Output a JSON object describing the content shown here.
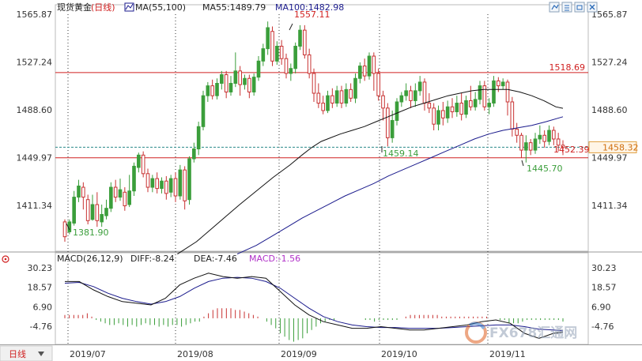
{
  "header": {
    "instrument": "现货黄金",
    "period": "(日线)",
    "ma_label": "MA(55,100)",
    "ma55_label": "MA55:1489.79",
    "ma100_label": "MA100:1482.98"
  },
  "macd_header": {
    "params": "MACD(26,12,9)",
    "diff_label": "DIFF:-8.24",
    "dea_label": "DEA:-7.46",
    "macd_label": "MACD:-1.56"
  },
  "bottom_tab": "日线",
  "watermark": "FX678汇通网",
  "toolbar_icons": [
    "chart-settings-icon",
    "layout-toggle-icon",
    "window-restore-icon",
    "window-close-icon"
  ],
  "colors": {
    "up": "#3b9e3b",
    "down": "#c83232",
    "hline": "#d02020",
    "current_dashed": "#2a8a8a",
    "ma55": "#111111",
    "ma100": "#1a1a8c",
    "dea": "#1a1a8c",
    "diff": "#111111",
    "label_green": "#3b9e3b",
    "label_red": "#d02020",
    "axis_text": "#333333",
    "grid_vline": "#333333"
  },
  "chart_data": [
    {
      "type": "candlestick",
      "title": "",
      "ylim": [
        1372,
        1577
      ],
      "price_ticks": [
        1565.87,
        1527.24,
        1488.6,
        1449.97,
        1411.34
      ],
      "x_ticks": [
        "2019/07",
        "2019/08",
        "2019/09",
        "2019/10",
        "2019/11"
      ],
      "horizontal_lines": [
        {
          "value": 1518.69,
          "label": "1518.69"
        },
        {
          "value": 1449.8,
          "label": ""
        }
      ],
      "current_price": {
        "value": 1458.32,
        "label": "1458.32"
      },
      "annotations": [
        {
          "value": 1557.11,
          "label": "1557.11",
          "color": "red"
        },
        {
          "value": 1381.9,
          "label": "1381.90",
          "color": "green"
        },
        {
          "value": 1459.14,
          "label": "1459.14",
          "color": "green"
        },
        {
          "value": 1445.7,
          "label": "1445.70",
          "color": "green"
        },
        {
          "value": 1452.39,
          "label": "1452.39",
          "color": "red"
        }
      ],
      "candles": [
        [
          1398,
          1386,
          1400,
          1382
        ],
        [
          1390,
          1398,
          1400,
          1388
        ],
        [
          1397,
          1418,
          1423,
          1395
        ],
        [
          1418,
          1427,
          1432,
          1414
        ],
        [
          1426,
          1418,
          1430,
          1408
        ],
        [
          1416,
          1399,
          1420,
          1396
        ],
        [
          1400,
          1412,
          1420,
          1399
        ],
        [
          1412,
          1399,
          1422,
          1394
        ],
        [
          1398,
          1404,
          1412,
          1394
        ],
        [
          1403,
          1409,
          1416,
          1400
        ],
        [
          1409,
          1426,
          1430,
          1406
        ],
        [
          1426,
          1418,
          1432,
          1414
        ],
        [
          1418,
          1424,
          1433,
          1415
        ],
        [
          1422,
          1411,
          1426,
          1407
        ],
        [
          1412,
          1423,
          1436,
          1410
        ],
        [
          1423,
          1443,
          1446,
          1419
        ],
        [
          1442,
          1452,
          1454,
          1438
        ],
        [
          1452,
          1437,
          1455,
          1434
        ],
        [
          1437,
          1426,
          1441,
          1422
        ],
        [
          1426,
          1433,
          1436,
          1422
        ],
        [
          1433,
          1425,
          1438,
          1421
        ],
        [
          1425,
          1431,
          1434,
          1421
        ],
        [
          1431,
          1421,
          1435,
          1416
        ],
        [
          1422,
          1433,
          1436,
          1418
        ],
        [
          1433,
          1419,
          1438,
          1414
        ],
        [
          1419,
          1440,
          1444,
          1416
        ],
        [
          1440,
          1415,
          1443,
          1408
        ],
        [
          1416,
          1449,
          1451,
          1412
        ],
        [
          1449,
          1457,
          1462,
          1446
        ],
        [
          1457,
          1475,
          1479,
          1452
        ],
        [
          1475,
          1500,
          1504,
          1472
        ],
        [
          1500,
          1508,
          1511,
          1495
        ],
        [
          1508,
          1500,
          1513,
          1497
        ],
        [
          1500,
          1510,
          1514,
          1497
        ],
        [
          1510,
          1517,
          1520,
          1505
        ],
        [
          1517,
          1503,
          1520,
          1498
        ],
        [
          1503,
          1510,
          1516,
          1500
        ],
        [
          1510,
          1520,
          1535,
          1507
        ],
        [
          1520,
          1509,
          1524,
          1500
        ],
        [
          1509,
          1514,
          1517,
          1505
        ],
        [
          1514,
          1503,
          1517,
          1498
        ],
        [
          1503,
          1515,
          1518,
          1500
        ],
        [
          1515,
          1528,
          1532,
          1512
        ],
        [
          1528,
          1538,
          1542,
          1524
        ],
        [
          1538,
          1555,
          1560,
          1533
        ],
        [
          1552,
          1528,
          1556,
          1524
        ],
        [
          1528,
          1540,
          1544,
          1525
        ],
        [
          1540,
          1530,
          1545,
          1525
        ],
        [
          1530,
          1518,
          1534,
          1514
        ],
        [
          1518,
          1522,
          1526,
          1512
        ],
        [
          1522,
          1540,
          1543,
          1518
        ],
        [
          1540,
          1553,
          1557,
          1537
        ],
        [
          1553,
          1533,
          1557,
          1530
        ],
        [
          1533,
          1518,
          1538,
          1514
        ],
        [
          1518,
          1502,
          1522,
          1495
        ],
        [
          1502,
          1494,
          1510,
          1490
        ],
        [
          1494,
          1488,
          1500,
          1485
        ],
        [
          1488,
          1500,
          1504,
          1486
        ],
        [
          1500,
          1494,
          1506,
          1490
        ],
        [
          1494,
          1504,
          1508,
          1491
        ],
        [
          1504,
          1494,
          1508,
          1490
        ],
        [
          1494,
          1505,
          1510,
          1491
        ],
        [
          1505,
          1498,
          1510,
          1495
        ],
        [
          1498,
          1514,
          1518,
          1494
        ],
        [
          1514,
          1524,
          1527,
          1510
        ],
        [
          1524,
          1516,
          1530,
          1512
        ],
        [
          1516,
          1532,
          1535,
          1513
        ],
        [
          1532,
          1518,
          1535,
          1504
        ],
        [
          1518,
          1500,
          1522,
          1496
        ],
        [
          1500,
          1490,
          1504,
          1480
        ],
        [
          1490,
          1466,
          1494,
          1459
        ],
        [
          1466,
          1480,
          1488,
          1462
        ],
        [
          1480,
          1495,
          1498,
          1476
        ],
        [
          1495,
          1500,
          1503,
          1491
        ],
        [
          1500,
          1504,
          1510,
          1496
        ],
        [
          1504,
          1496,
          1508,
          1490
        ],
        [
          1496,
          1504,
          1510,
          1491
        ],
        [
          1504,
          1511,
          1516,
          1500
        ],
        [
          1511,
          1494,
          1514,
          1488
        ],
        [
          1494,
          1490,
          1502,
          1486
        ],
        [
          1490,
          1477,
          1494,
          1472
        ],
        [
          1477,
          1488,
          1492,
          1472
        ],
        [
          1488,
          1482,
          1495,
          1476
        ],
        [
          1482,
          1491,
          1496,
          1478
        ],
        [
          1491,
          1487,
          1498,
          1482
        ],
        [
          1487,
          1494,
          1500,
          1483
        ],
        [
          1494,
          1485,
          1502,
          1480
        ],
        [
          1485,
          1496,
          1500,
          1482
        ],
        [
          1496,
          1491,
          1508,
          1488
        ],
        [
          1491,
          1497,
          1503,
          1488
        ],
        [
          1497,
          1508,
          1512,
          1493
        ],
        [
          1508,
          1491,
          1512,
          1488
        ],
        [
          1491,
          1494,
          1498,
          1485
        ],
        [
          1494,
          1512,
          1516,
          1491
        ],
        [
          1512,
          1508,
          1515,
          1503
        ],
        [
          1508,
          1511,
          1514,
          1505
        ],
        [
          1511,
          1495,
          1513,
          1484
        ],
        [
          1495,
          1473,
          1499,
          1467
        ],
        [
          1473,
          1468,
          1478,
          1462
        ],
        [
          1468,
          1456,
          1470,
          1450
        ],
        [
          1456,
          1462,
          1468,
          1446
        ],
        [
          1462,
          1456,
          1465,
          1452
        ],
        [
          1456,
          1465,
          1470,
          1453
        ],
        [
          1465,
          1468,
          1476,
          1461
        ],
        [
          1468,
          1463,
          1472,
          1458
        ],
        [
          1463,
          1472,
          1476,
          1460
        ],
        [
          1472,
          1465,
          1475,
          1460
        ],
        [
          1465,
          1460,
          1470,
          1455
        ],
        [
          1460,
          1458,
          1464,
          1452
        ]
      ],
      "ma55": [
        [
          47,
          1372
        ],
        [
          55,
          1382
        ],
        [
          61,
          1392
        ],
        [
          67,
          1402
        ],
        [
          73,
          1412
        ],
        [
          80,
          1423
        ],
        [
          87,
          1434
        ],
        [
          94,
          1444
        ],
        [
          99,
          1452
        ],
        [
          103,
          1458
        ],
        [
          107,
          1463
        ],
        [
          111,
          1466
        ],
        [
          115,
          1469
        ],
        [
          120,
          1472
        ],
        [
          125,
          1475
        ],
        [
          130,
          1479
        ],
        [
          135,
          1483
        ],
        [
          140,
          1487
        ],
        [
          145,
          1491
        ],
        [
          150,
          1494
        ],
        [
          155,
          1497
        ],
        [
          160,
          1500
        ],
        [
          165,
          1502
        ],
        [
          170,
          1504
        ],
        [
          175,
          1505
        ],
        [
          180,
          1505
        ],
        [
          185,
          1505
        ],
        [
          190,
          1503
        ],
        [
          195,
          1500
        ],
        [
          200,
          1496
        ],
        [
          205,
          1491
        ],
        [
          208,
          1489.79
        ]
      ],
      "ma100": [
        [
          72,
          1372
        ],
        [
          80,
          1379
        ],
        [
          87,
          1387
        ],
        [
          93,
          1394
        ],
        [
          99,
          1401
        ],
        [
          105,
          1407
        ],
        [
          111,
          1413
        ],
        [
          117,
          1419
        ],
        [
          123,
          1424
        ],
        [
          129,
          1429
        ],
        [
          135,
          1435
        ],
        [
          141,
          1440
        ],
        [
          147,
          1445
        ],
        [
          153,
          1450
        ],
        [
          159,
          1455
        ],
        [
          165,
          1460
        ],
        [
          171,
          1465
        ],
        [
          177,
          1469
        ],
        [
          183,
          1472
        ],
        [
          189,
          1474
        ],
        [
          195,
          1476
        ],
        [
          201,
          1479
        ],
        [
          208,
          1482.98
        ]
      ]
    },
    {
      "type": "macd",
      "title": "",
      "ylim": [
        -16,
        34
      ],
      "macd_ticks": [
        30.23,
        18.57,
        6.9,
        -4.76
      ],
      "dea": [
        [
          0,
          21
        ],
        [
          6,
          21.5
        ],
        [
          12,
          19
        ],
        [
          18,
          15
        ],
        [
          24,
          12
        ],
        [
          30,
          10
        ],
        [
          36,
          8.5
        ],
        [
          42,
          10
        ],
        [
          48,
          13
        ],
        [
          54,
          18
        ],
        [
          60,
          22
        ],
        [
          66,
          24
        ],
        [
          72,
          24.5
        ],
        [
          78,
          24
        ],
        [
          84,
          22
        ],
        [
          90,
          18
        ],
        [
          96,
          12
        ],
        [
          102,
          6
        ],
        [
          108,
          1
        ],
        [
          114,
          -2
        ],
        [
          120,
          -4
        ],
        [
          126,
          -5
        ],
        [
          132,
          -5.5
        ],
        [
          138,
          -5.5
        ],
        [
          144,
          -6
        ],
        [
          150,
          -6
        ],
        [
          156,
          -6
        ],
        [
          162,
          -5.5
        ],
        [
          168,
          -5
        ],
        [
          174,
          -4.5
        ],
        [
          180,
          -4
        ],
        [
          186,
          -4
        ],
        [
          192,
          -5
        ],
        [
          198,
          -6.5
        ],
        [
          204,
          -7
        ],
        [
          208,
          -7.46
        ]
      ],
      "diff": [
        [
          0,
          22
        ],
        [
          6,
          22
        ],
        [
          12,
          17
        ],
        [
          18,
          13
        ],
        [
          24,
          10
        ],
        [
          30,
          9
        ],
        [
          36,
          8
        ],
        [
          42,
          12
        ],
        [
          48,
          20
        ],
        [
          54,
          24
        ],
        [
          60,
          27
        ],
        [
          66,
          25
        ],
        [
          72,
          24
        ],
        [
          78,
          25
        ],
        [
          84,
          24
        ],
        [
          90,
          16
        ],
        [
          96,
          8
        ],
        [
          102,
          2
        ],
        [
          108,
          -2
        ],
        [
          114,
          -4
        ],
        [
          120,
          -6
        ],
        [
          126,
          -6
        ],
        [
          132,
          -5
        ],
        [
          138,
          -6
        ],
        [
          144,
          -7
        ],
        [
          150,
          -7
        ],
        [
          156,
          -6
        ],
        [
          162,
          -5
        ],
        [
          168,
          -4
        ],
        [
          174,
          -2
        ],
        [
          180,
          -1
        ],
        [
          186,
          -3
        ],
        [
          192,
          -9
        ],
        [
          198,
          -12
        ],
        [
          204,
          -9
        ],
        [
          208,
          -8.24
        ]
      ],
      "hist": [
        2,
        2,
        2,
        2,
        2,
        3,
        1,
        -1,
        -2,
        -3,
        -4,
        -4,
        -3,
        -4,
        -5,
        -4,
        -5,
        -4,
        -3,
        -4,
        -4,
        -5,
        -4,
        -5,
        -4,
        -4,
        -5,
        -4,
        -3,
        -2,
        -2,
        1,
        3,
        5,
        6,
        6,
        6,
        6,
        5,
        5,
        4,
        3,
        2,
        1,
        0,
        -2,
        -4,
        -6,
        -9,
        -11,
        -13,
        -14,
        -13,
        -12,
        -9,
        -7,
        -5,
        -3,
        -2,
        -1,
        -1,
        0,
        0,
        0,
        0,
        0,
        0,
        -1,
        -1,
        -2,
        -1,
        -1,
        -1,
        -1,
        -1,
        0,
        1,
        2,
        2,
        2,
        2,
        2,
        2,
        2,
        1,
        1,
        1,
        1,
        1,
        1,
        1,
        1,
        1,
        1,
        1,
        0,
        0,
        -1,
        -1,
        -3,
        -3,
        -3,
        -2,
        -1,
        -1,
        -1,
        -1,
        -1,
        -1,
        -1,
        -1,
        -2
      ]
    }
  ]
}
